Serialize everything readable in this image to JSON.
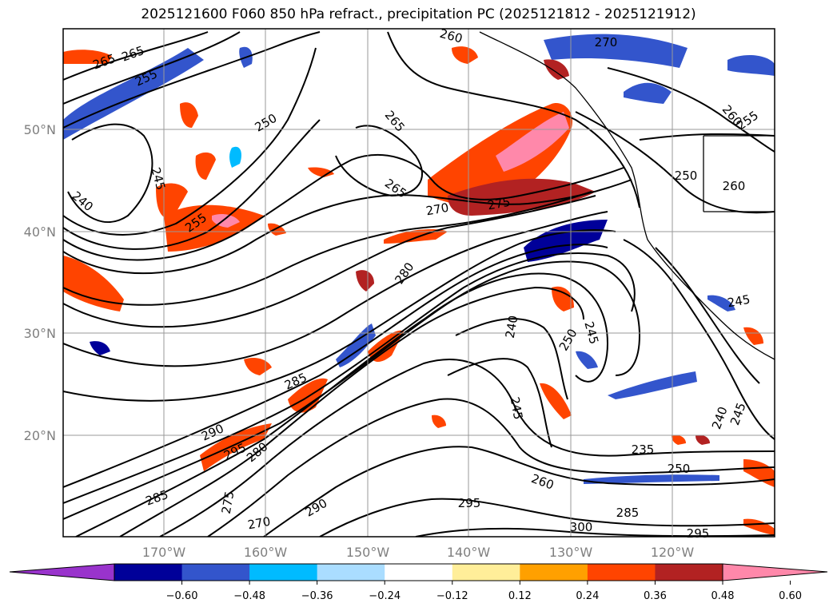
{
  "title": "2025121600 F060 850 hPa refract., precipitation PC (2025121812 - 2025121912)",
  "map": {
    "lat_labels": [
      "50°N",
      "40°N",
      "30°N",
      "20°N"
    ],
    "lon_labels": [
      "170°W",
      "160°W",
      "150°W",
      "140°W",
      "130°W",
      "120°W"
    ],
    "contour_labels": [
      "265",
      "265",
      "255",
      "250",
      "245",
      "240",
      "255",
      "265",
      "265",
      "270",
      "275",
      "280",
      "285",
      "290",
      "295",
      "280",
      "275",
      "270",
      "290",
      "295",
      "300",
      "285",
      "260",
      "245",
      "240",
      "250",
      "245",
      "235",
      "250",
      "240",
      "245",
      "245",
      "250",
      "260",
      "260",
      "255",
      "270",
      "260",
      "285",
      "295"
    ]
  },
  "colorbar": {
    "ticks": [
      "−0.60",
      "−0.48",
      "−0.36",
      "−0.24",
      "−0.12",
      "0.12",
      "0.24",
      "0.36",
      "0.48",
      "0.60"
    ],
    "colors": [
      "#9933cc",
      "#000099",
      "#3355cc",
      "#00bbff",
      "#aaddff",
      "#ffffff",
      "#ffee99",
      "#ffa000",
      "#ff4400",
      "#b22222",
      "#ff88aa"
    ]
  }
}
